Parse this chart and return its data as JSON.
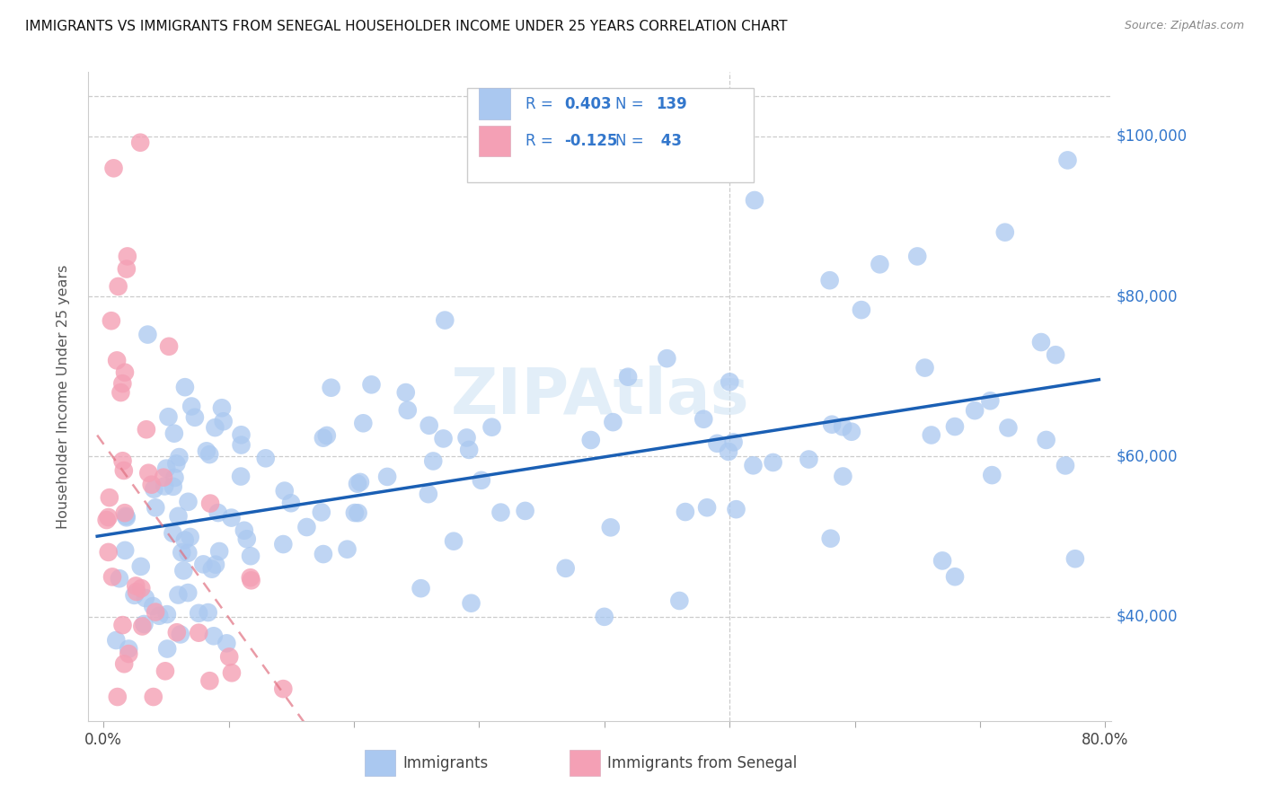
{
  "title": "IMMIGRANTS VS IMMIGRANTS FROM SENEGAL HOUSEHOLDER INCOME UNDER 25 YEARS CORRELATION CHART",
  "source": "Source: ZipAtlas.com",
  "ylabel": "Householder Income Under 25 years",
  "watermark": "ZIPAtlas",
  "blue_R": 0.403,
  "blue_N": 139,
  "pink_R": -0.125,
  "pink_N": 43,
  "blue_label": "Immigrants",
  "pink_label": "Immigrants from Senegal",
  "blue_color": "#aac8f0",
  "blue_line_color": "#1a5fb4",
  "pink_color": "#f4a0b5",
  "pink_line_color": "#e07080",
  "background_color": "#ffffff",
  "grid_color": "#cccccc",
  "title_color": "#111111",
  "right_tick_color": "#3377cc",
  "watermark_color": "#d0e4f4"
}
